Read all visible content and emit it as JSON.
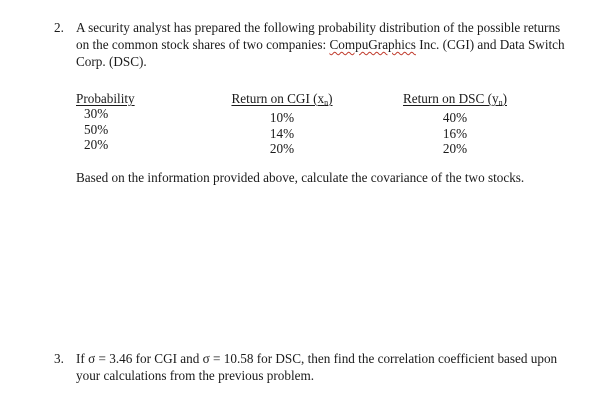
{
  "problem2": {
    "number": "2.",
    "text_before": "A security analyst has prepared the following probability distribution of the possible returns on the common stock shares of two companies: ",
    "company1": "CompuGraphics",
    "text_after": " Inc. (CGI) and Data Switch Corp. (DSC)."
  },
  "table": {
    "headers": {
      "probability": "Probability",
      "cgi_prefix": "Return on CGI (",
      "cgi_var": "x",
      "cgi_sub": "n",
      "cgi_suffix": ")",
      "dsc_prefix": "Return on DSC (",
      "dsc_var": "y",
      "dsc_sub": "n",
      "dsc_suffix": ")"
    },
    "probability": [
      "30%",
      "50%",
      "20%"
    ],
    "cgi": [
      "10%",
      "14%",
      "20%"
    ],
    "dsc": [
      "40%",
      "16%",
      "20%"
    ]
  },
  "instruction": "Based on the information provided above, calculate the covariance of the two stocks.",
  "problem3": {
    "number": "3.",
    "text": "If σ = 3.46 for CGI and σ = 10.58 for DSC, then find the correlation coefficient based upon your calculations from the previous problem."
  }
}
